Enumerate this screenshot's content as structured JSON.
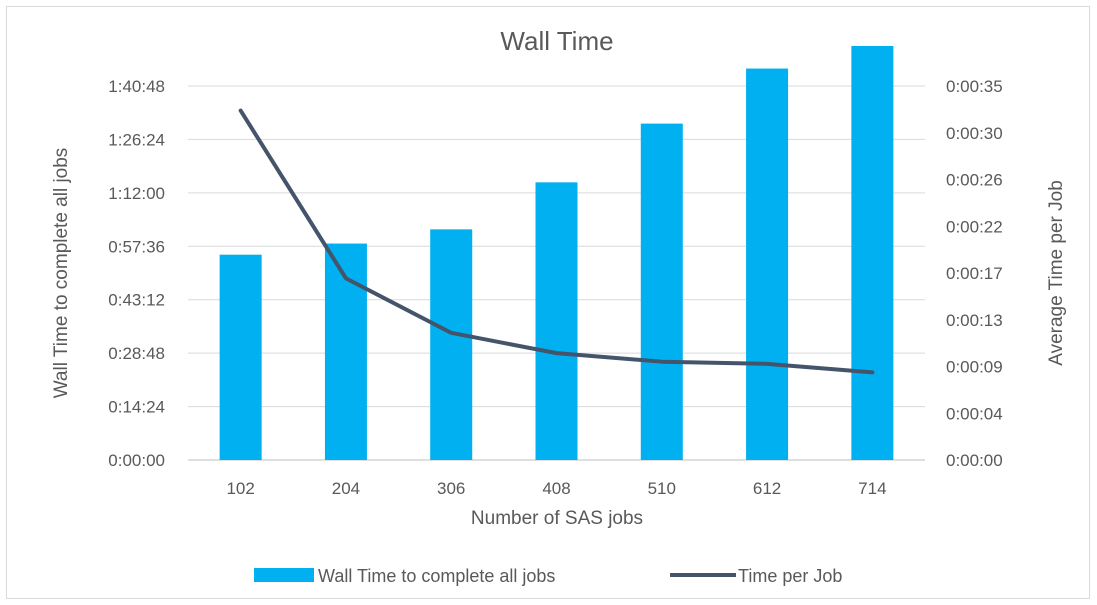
{
  "chart_data": {
    "type": "bar+line",
    "title": "Wall Time",
    "xlabel": "Number of SAS jobs",
    "ylabel_left": "Wall Time to complete all jobs",
    "ylabel_right": "Average Time per Job",
    "categories": [
      "102",
      "204",
      "306",
      "408",
      "510",
      "612",
      "714"
    ],
    "left_ticks": [
      "0:00:00",
      "0:14:24",
      "0:28:48",
      "0:43:12",
      "0:57:36",
      "1:12:00",
      "1:26:24",
      "1:40:48"
    ],
    "right_ticks": [
      "0:00:00",
      "0:00:04",
      "0:00:09",
      "0:00:13",
      "0:00:17",
      "0:00:22",
      "0:00:26",
      "0:00:30",
      "0:00:35"
    ],
    "left_ylim_seconds": [
      0,
      6048
    ],
    "right_ylim_seconds": [
      0,
      35
    ],
    "grid": true,
    "legend_position": "bottom",
    "series": [
      {
        "name": "Wall Time to complete all jobs",
        "type": "bar",
        "axis": "left",
        "color": "#00b0f0",
        "values_seconds": [
          3320,
          3500,
          3730,
          4490,
          5440,
          6330,
          7140
        ]
      },
      {
        "name": "Time per Job",
        "type": "line",
        "axis": "right",
        "color": "#44546a",
        "values_seconds": [
          32.7,
          17.0,
          11.9,
          10.0,
          9.2,
          9.0,
          8.2
        ]
      }
    ]
  }
}
